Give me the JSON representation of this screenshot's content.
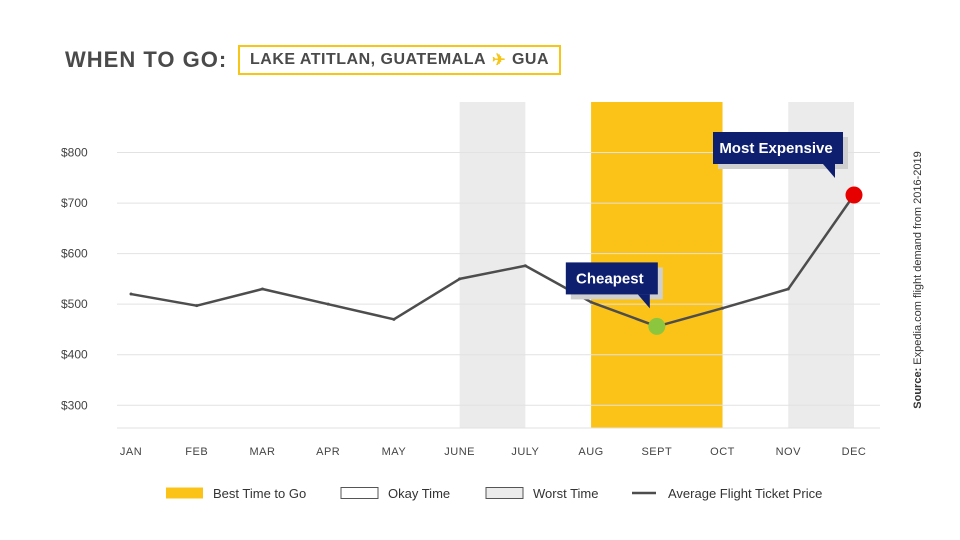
{
  "header": {
    "title": "WHEN TO GO:",
    "destination": "LAKE ATITLAN, GUATEMALA",
    "airport": "GUA",
    "plane_icon": "airplane-icon"
  },
  "source": {
    "label": "Source:",
    "text": "Expedia.com flight demand from 2016-2019"
  },
  "colors": {
    "best": "#fbc317",
    "worst": "#ebebeb",
    "line": "#4d4d4d",
    "cheapest_dot": "#8cc63f",
    "expensive_dot": "#e60000",
    "callout": "#0d1f6e",
    "border_accent": "#f5c518"
  },
  "chart_data": {
    "type": "line",
    "categories": [
      "JAN",
      "FEB",
      "MAR",
      "APR",
      "MAY",
      "JUNE",
      "JULY",
      "AUG",
      "SEPT",
      "OCT",
      "NOV",
      "DEC"
    ],
    "series": [
      {
        "name": "Average Flight Ticket Price",
        "values": [
          520,
          497,
          530,
          500,
          470,
          550,
          576,
          504,
          456,
          492,
          530,
          716
        ]
      }
    ],
    "y_ticks": [
      "$300",
      "$400",
      "$500",
      "$600",
      "$700",
      "$800"
    ],
    "ylim": [
      255,
      900
    ],
    "grid": true,
    "bands": [
      {
        "kind": "worst",
        "from": "JUNE",
        "to": "JULY"
      },
      {
        "kind": "best",
        "from": "AUG",
        "to": "OCT"
      },
      {
        "kind": "worst",
        "from": "NOV",
        "to": "DEC"
      }
    ],
    "annotations": [
      {
        "text": "Cheapest",
        "month": "SEPT",
        "value": 456,
        "marker": "cheapest"
      },
      {
        "text": "Most Expensive",
        "month": "DEC",
        "value": 716,
        "marker": "expensive"
      }
    ],
    "legend": {
      "placement": "bottom",
      "items": [
        {
          "label": "Best Time to Go",
          "kind": "best"
        },
        {
          "label": "Okay Time",
          "kind": "okay"
        },
        {
          "label": "Worst Time",
          "kind": "worst"
        },
        {
          "label": "Average Flight Ticket Price",
          "kind": "line"
        }
      ]
    }
  }
}
